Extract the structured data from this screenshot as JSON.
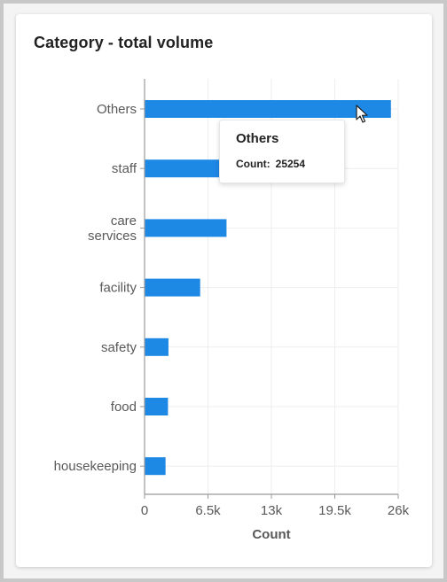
{
  "card": {
    "title": "Category - total volume"
  },
  "chart_data": {
    "type": "bar",
    "orientation": "horizontal",
    "title": "Category - total volume",
    "xlabel": "Count",
    "ylabel": "",
    "categories": [
      "Others",
      "staff",
      "care services",
      "facility",
      "safety",
      "food",
      "housekeeping"
    ],
    "category_lines": [
      [
        "Others"
      ],
      [
        "staff"
      ],
      [
        "care",
        "services"
      ],
      [
        "facility"
      ],
      [
        "safety"
      ],
      [
        "food"
      ],
      [
        "housekeeping"
      ]
    ],
    "values": [
      25254,
      14500,
      8400,
      5700,
      2450,
      2400,
      2150
    ],
    "xlim": [
      0,
      26000
    ],
    "xticks": [
      0,
      6500,
      13000,
      19500,
      26000
    ],
    "xtick_labels": [
      "0",
      "6.5k",
      "13k",
      "19.5k",
      "26k"
    ],
    "grid": true,
    "bar_color": "#1e88e5"
  },
  "tooltip": {
    "title": "Others",
    "label": "Count:",
    "value": "25254"
  },
  "colors": {
    "bar": "#1e88e5",
    "grid": "#eeeeee",
    "axis": "#999999",
    "text": "#595959"
  }
}
